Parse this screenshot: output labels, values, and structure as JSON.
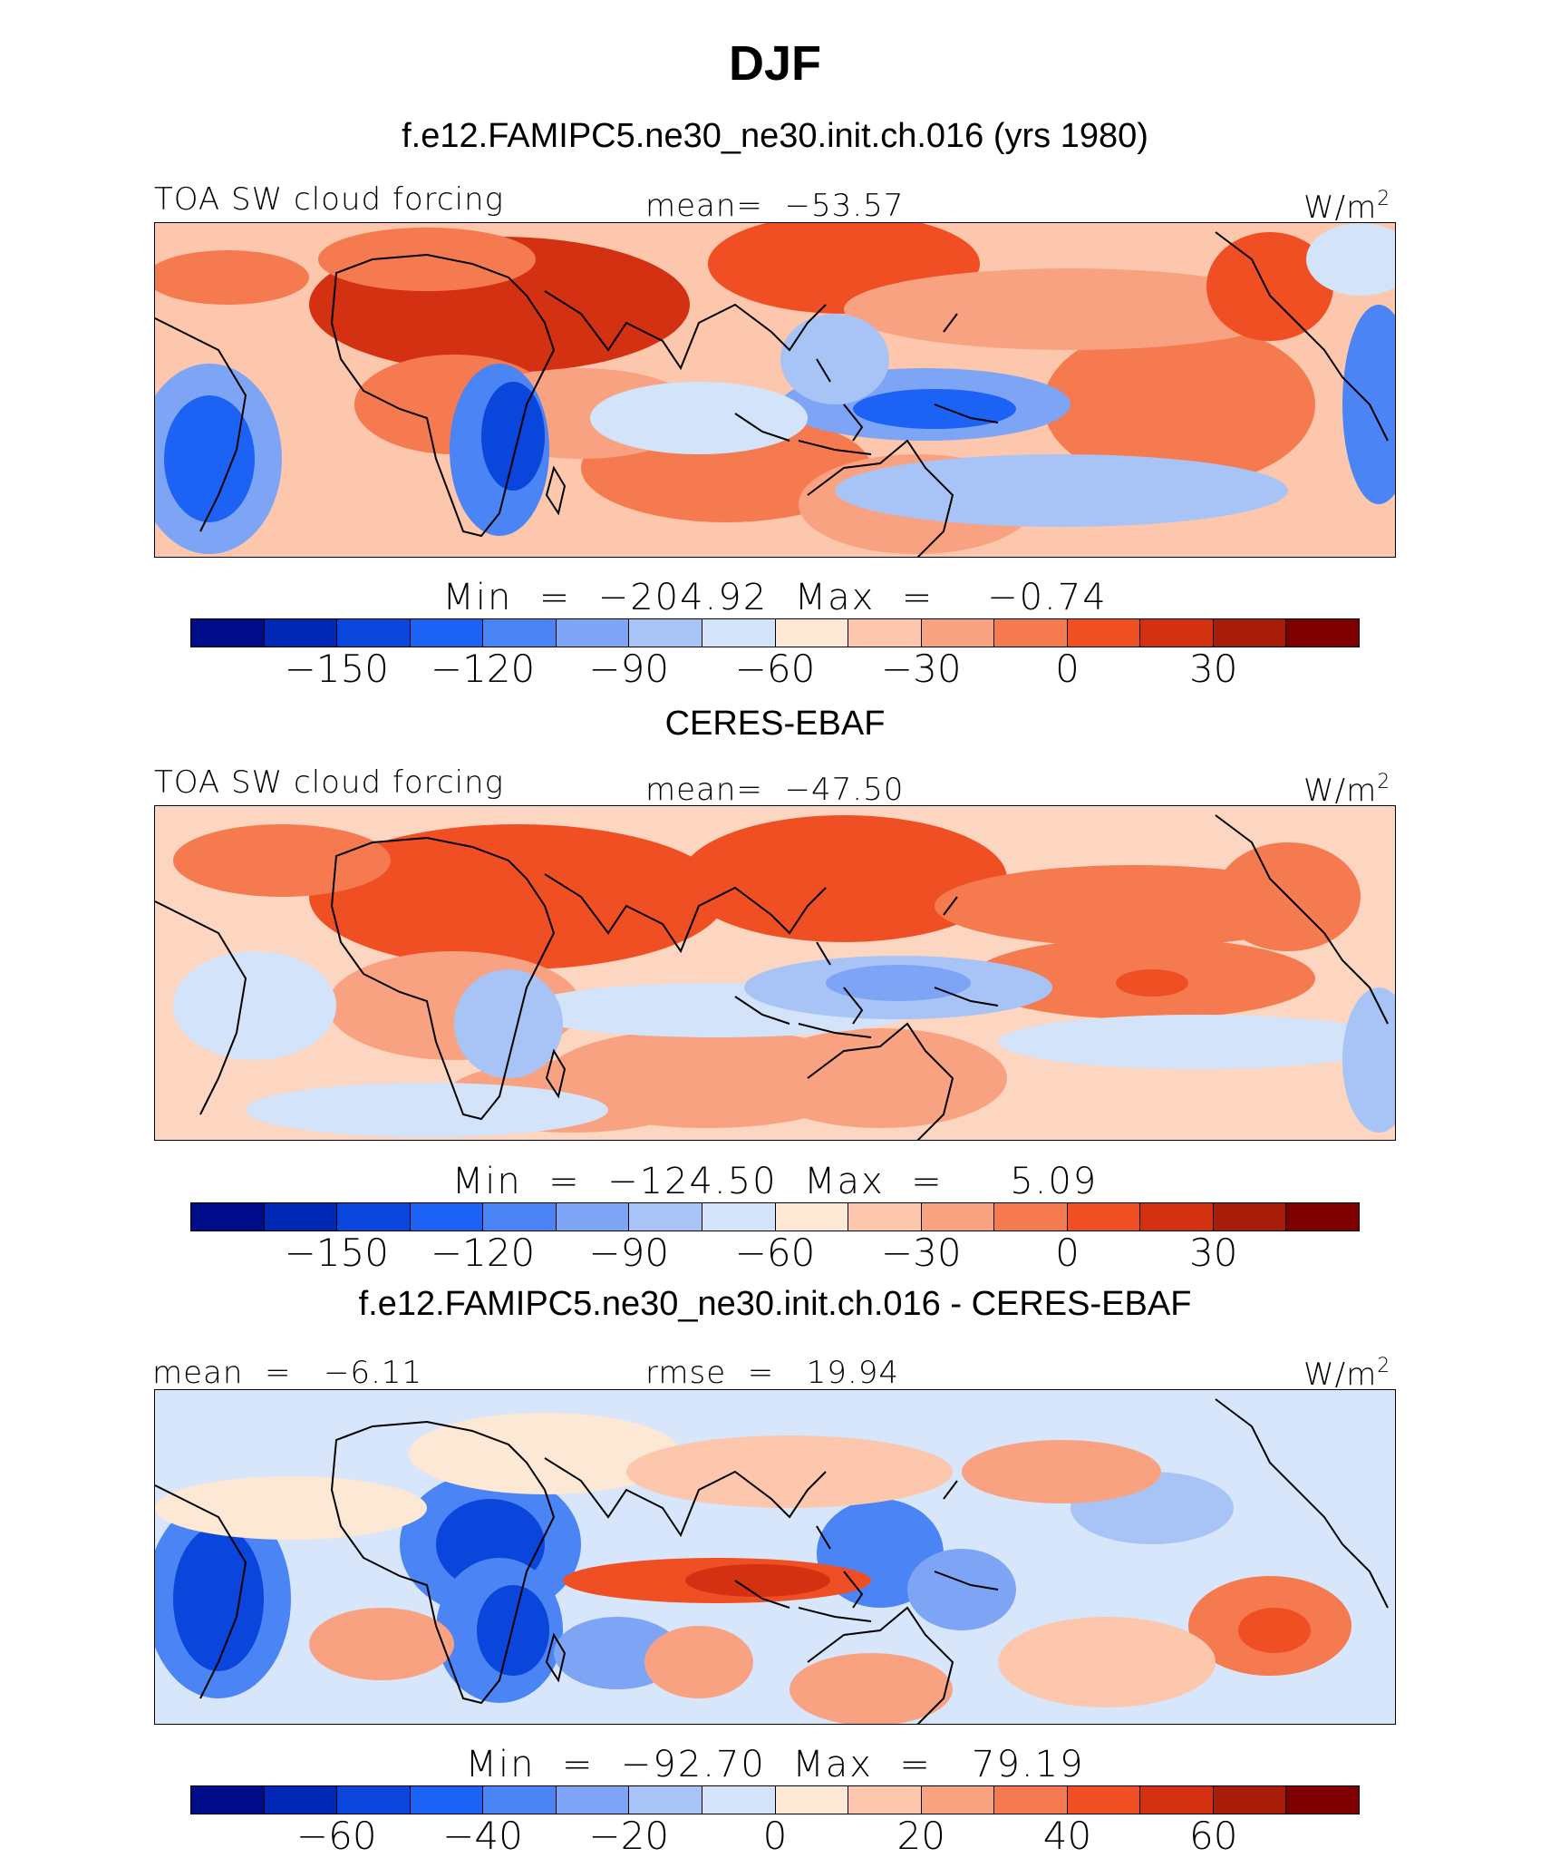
{
  "title": "DJF",
  "colors": [
    "#000c8a",
    "#0028b4",
    "#0a46dc",
    "#1c63f5",
    "#4a84f5",
    "#7ea5f5",
    "#a8c3f5",
    "#d2e3fa",
    "#fde8d6",
    "#fcc7ac",
    "#f9a282",
    "#f57a50",
    "#f04e23",
    "#d43012",
    "#a81c0a",
    "#7e0000"
  ],
  "panels": [
    {
      "id": "model",
      "title": "f.e12.FAMIPC5.ne30_ne30.init.ch.016 (yrs 1980)",
      "left_label": "TOA SW cloud forcing",
      "center_label": "mean=  −53.57",
      "units_base": "W/m",
      "units_exp": "2",
      "minmax": "Min  =  −204.92  Max  =    −0.74",
      "ticks": [
        "−150",
        "−120",
        "−90",
        "−60",
        "−30",
        "0",
        "30"
      ],
      "base": "#fcc7ac"
    },
    {
      "id": "obs",
      "title": "CERES-EBAF",
      "left_label": "TOA SW cloud forcing",
      "center_label": "mean=  −47.50",
      "units_base": "W/m",
      "units_exp": "2",
      "minmax": "Min  =  −124.50  Max  =     5.09",
      "ticks": [
        "−150",
        "−120",
        "−90",
        "−60",
        "−30",
        "0",
        "30"
      ],
      "base": "#fcd6c0"
    },
    {
      "id": "diff",
      "title": "f.e12.FAMIPC5.ne30_ne30.init.ch.016 - CERES-EBAF",
      "left_label": "mean  =   −6.11",
      "center_label": "rmse  =   19.94",
      "units_base": "W/m",
      "units_exp": "2",
      "minmax": "Min  =  −92.70  Max  =   79.19",
      "ticks": [
        "−60",
        "−40",
        "−20",
        "0",
        "20",
        "40",
        "60"
      ],
      "base": "#d8e6fb"
    }
  ]
}
